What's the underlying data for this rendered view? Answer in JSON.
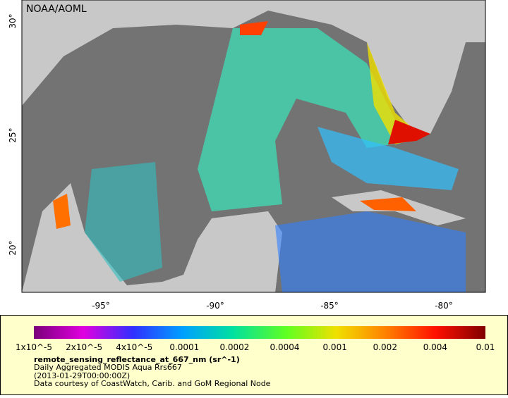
{
  "map": {
    "credit": "NOAA/AOML",
    "lat_labels": [
      "30°",
      "25°",
      "20°"
    ],
    "lon_labels": [
      "-95°",
      "-90°",
      "-85°",
      "-80°"
    ]
  },
  "legend": {
    "colorbar_labels": [
      "1x10^-5",
      "2x10^-5",
      "4x10^-5",
      "0.0001",
      "0.0002",
      "0.0004",
      "0.001",
      "0.002",
      "0.004",
      "0.01"
    ],
    "variable": "remote_sensing_reflectance_at_667_nm (sr^-1)",
    "lines": [
      "Daily Aggregated MODIS Aqua Rrs667",
      "(2013-01-29T00:00:00Z)",
      "Data courtesy of CoastWatch, Carib. and GoM Regional Node"
    ]
  }
}
